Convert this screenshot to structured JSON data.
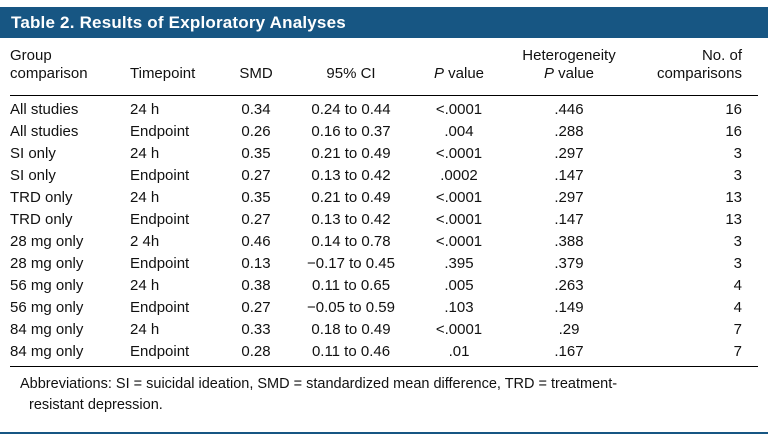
{
  "colors": {
    "header_bar": "#175683",
    "rule": "#000000",
    "background": "#ffffff",
    "title_text": "#ffffff"
  },
  "title": "Table 2. Results of Exploratory Analyses",
  "header": {
    "group_line1": "Group",
    "group_line2": "comparison",
    "timepoint": "Timepoint",
    "smd": "SMD",
    "ci": "95% CI",
    "p_italic": "P",
    "p_rest": " value",
    "het_line1": "Heterogeneity",
    "het_p_italic": "P",
    "het_p_rest": " value",
    "no_line1": "No. of",
    "no_line2": "comparisons"
  },
  "rows": [
    [
      "All studies",
      "24 h",
      "0.34",
      "0.24 to 0.44",
      "<.0001",
      ".446",
      "16"
    ],
    [
      "All studies",
      "Endpoint",
      "0.26",
      "0.16 to 0.37",
      ".004",
      ".288",
      "16"
    ],
    [
      "SI only",
      "24 h",
      "0.35",
      "0.21 to 0.49",
      "<.0001",
      ".297",
      "3"
    ],
    [
      "SI only",
      "Endpoint",
      "0.27",
      "0.13 to 0.42",
      ".0002",
      ".147",
      "3"
    ],
    [
      "TRD only",
      "24 h",
      "0.35",
      "0.21 to 0.49",
      "<.0001",
      ".297",
      "13"
    ],
    [
      "TRD only",
      "Endpoint",
      "0.27",
      "0.13 to 0.42",
      "<.0001",
      ".147",
      "13"
    ],
    [
      "28 mg only",
      "2 4h",
      "0.46",
      "0.14 to 0.78",
      "<.0001",
      ".388",
      "3"
    ],
    [
      "28 mg only",
      "Endpoint",
      "0.13",
      "−0.17 to 0.45",
      ".395",
      ".379",
      "3"
    ],
    [
      "56 mg only",
      "24 h",
      "0.38",
      "0.11 to 0.65",
      ".005",
      ".263",
      "4"
    ],
    [
      "56 mg only",
      "Endpoint",
      "0.27",
      "−0.05 to 0.59",
      ".103",
      ".149",
      "4"
    ],
    [
      "84 mg only",
      "24 h",
      "0.33",
      "0.18 to 0.49",
      "<.0001",
      ".29",
      "7"
    ],
    [
      "84 mg only",
      "Endpoint",
      "0.28",
      "0.11 to 0.46",
      ".01",
      ".167",
      "7"
    ]
  ],
  "footnote": {
    "line1": "Abbreviations: SI = suicidal ideation, SMD = standardized mean difference, TRD = treatment-",
    "line2": "resistant depression."
  }
}
